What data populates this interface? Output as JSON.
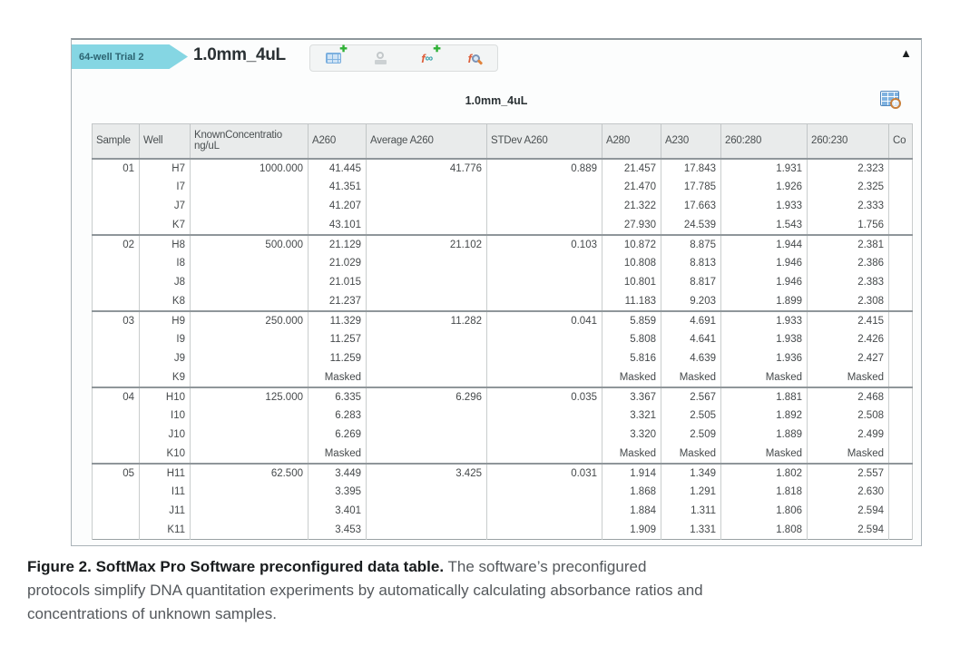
{
  "panel": {
    "tab_label": "64-well Trial 2",
    "doc_title": "1.0mm_4uL",
    "section_title": "1.0mm_4uL",
    "icons": {
      "plus_badge": "✚",
      "formula_f": "f",
      "formula_oo": "∞",
      "collapse": "▲",
      "names": [
        "insert-plate-icon",
        "stamp-icon",
        "insert-formula-icon",
        "find-formula-icon",
        "table-zoom-icon",
        "collapse-icon"
      ]
    }
  },
  "colors": {
    "tab_teal": "#85d6e3",
    "icon_blue": "#79aede",
    "icon_green": "#2eb135",
    "icon_orange": "#e0833c",
    "icon_red": "#dd5f3b",
    "header_gray": "#e9ebeb"
  },
  "table": {
    "headers": [
      "Sample",
      "Well",
      "KnownConcentratio ng/uL",
      "A260",
      "Average A260",
      "STDev A260",
      "A280",
      "A230",
      "260:280",
      "260:230",
      "Co"
    ],
    "row_keys": [
      "sample",
      "well",
      "known",
      "a260",
      "avg",
      "stdev",
      "a280",
      "a230",
      "r260_280",
      "r260_230",
      "co"
    ],
    "group_size": 4,
    "rows": [
      {
        "sample": "01",
        "well": "H7",
        "known": "1000.000",
        "a260": "41.445",
        "avg": "41.776",
        "stdev": "0.889",
        "a280": "21.457",
        "a230": "17.843",
        "r260_280": "1.931",
        "r260_230": "2.323",
        "co": ""
      },
      {
        "sample": "",
        "well": "I7",
        "known": "",
        "a260": "41.351",
        "avg": "",
        "stdev": "",
        "a280": "21.470",
        "a230": "17.785",
        "r260_280": "1.926",
        "r260_230": "2.325",
        "co": ""
      },
      {
        "sample": "",
        "well": "J7",
        "known": "",
        "a260": "41.207",
        "avg": "",
        "stdev": "",
        "a280": "21.322",
        "a230": "17.663",
        "r260_280": "1.933",
        "r260_230": "2.333",
        "co": ""
      },
      {
        "sample": "",
        "well": "K7",
        "known": "",
        "a260": "43.101",
        "avg": "",
        "stdev": "",
        "a280": "27.930",
        "a230": "24.539",
        "r260_280": "1.543",
        "r260_230": "1.756",
        "co": ""
      },
      {
        "sample": "02",
        "well": "H8",
        "known": "500.000",
        "a260": "21.129",
        "avg": "21.102",
        "stdev": "0.103",
        "a280": "10.872",
        "a230": "8.875",
        "r260_280": "1.944",
        "r260_230": "2.381",
        "co": ""
      },
      {
        "sample": "",
        "well": "I8",
        "known": "",
        "a260": "21.029",
        "avg": "",
        "stdev": "",
        "a280": "10.808",
        "a230": "8.813",
        "r260_280": "1.946",
        "r260_230": "2.386",
        "co": ""
      },
      {
        "sample": "",
        "well": "J8",
        "known": "",
        "a260": "21.015",
        "avg": "",
        "stdev": "",
        "a280": "10.801",
        "a230": "8.817",
        "r260_280": "1.946",
        "r260_230": "2.383",
        "co": ""
      },
      {
        "sample": "",
        "well": "K8",
        "known": "",
        "a260": "21.237",
        "avg": "",
        "stdev": "",
        "a280": "11.183",
        "a230": "9.203",
        "r260_280": "1.899",
        "r260_230": "2.308",
        "co": ""
      },
      {
        "sample": "03",
        "well": "H9",
        "known": "250.000",
        "a260": "11.329",
        "avg": "11.282",
        "stdev": "0.041",
        "a280": "5.859",
        "a230": "4.691",
        "r260_280": "1.933",
        "r260_230": "2.415",
        "co": ""
      },
      {
        "sample": "",
        "well": "I9",
        "known": "",
        "a260": "11.257",
        "avg": "",
        "stdev": "",
        "a280": "5.808",
        "a230": "4.641",
        "r260_280": "1.938",
        "r260_230": "2.426",
        "co": ""
      },
      {
        "sample": "",
        "well": "J9",
        "known": "",
        "a260": "11.259",
        "avg": "",
        "stdev": "",
        "a280": "5.816",
        "a230": "4.639",
        "r260_280": "1.936",
        "r260_230": "2.427",
        "co": ""
      },
      {
        "sample": "",
        "well": "K9",
        "known": "",
        "a260": "Masked",
        "avg": "",
        "stdev": "",
        "a280": "Masked",
        "a230": "Masked",
        "r260_280": "Masked",
        "r260_230": "Masked",
        "co": ""
      },
      {
        "sample": "04",
        "well": "H10",
        "known": "125.000",
        "a260": "6.335",
        "avg": "6.296",
        "stdev": "0.035",
        "a280": "3.367",
        "a230": "2.567",
        "r260_280": "1.881",
        "r260_230": "2.468",
        "co": ""
      },
      {
        "sample": "",
        "well": "I10",
        "known": "",
        "a260": "6.283",
        "avg": "",
        "stdev": "",
        "a280": "3.321",
        "a230": "2.505",
        "r260_280": "1.892",
        "r260_230": "2.508",
        "co": ""
      },
      {
        "sample": "",
        "well": "J10",
        "known": "",
        "a260": "6.269",
        "avg": "",
        "stdev": "",
        "a280": "3.320",
        "a230": "2.509",
        "r260_280": "1.889",
        "r260_230": "2.499",
        "co": ""
      },
      {
        "sample": "",
        "well": "K10",
        "known": "",
        "a260": "Masked",
        "avg": "",
        "stdev": "",
        "a280": "Masked",
        "a230": "Masked",
        "r260_280": "Masked",
        "r260_230": "Masked",
        "co": ""
      },
      {
        "sample": "05",
        "well": "H11",
        "known": "62.500",
        "a260": "3.449",
        "avg": "3.425",
        "stdev": "0.031",
        "a280": "1.914",
        "a230": "1.349",
        "r260_280": "1.802",
        "r260_230": "2.557",
        "co": ""
      },
      {
        "sample": "",
        "well": "I11",
        "known": "",
        "a260": "3.395",
        "avg": "",
        "stdev": "",
        "a280": "1.868",
        "a230": "1.291",
        "r260_280": "1.818",
        "r260_230": "2.630",
        "co": ""
      },
      {
        "sample": "",
        "well": "J11",
        "known": "",
        "a260": "3.401",
        "avg": "",
        "stdev": "",
        "a280": "1.884",
        "a230": "1.311",
        "r260_280": "1.806",
        "r260_230": "2.594",
        "co": ""
      },
      {
        "sample": "",
        "well": "K11",
        "known": "",
        "a260": "3.453",
        "avg": "",
        "stdev": "",
        "a280": "1.909",
        "a230": "1.331",
        "r260_280": "1.808",
        "r260_230": "2.594",
        "co": ""
      }
    ]
  },
  "caption": {
    "line1_bold": "Figure 2. SoftMax Pro Software preconfigured data table.",
    "line1_rest": " The software’s preconfigured",
    "line2": "protocols simplify DNA quantitation experiments by automatically calculating absorbance ratios and",
    "line3": "concentrations of unknown samples."
  }
}
